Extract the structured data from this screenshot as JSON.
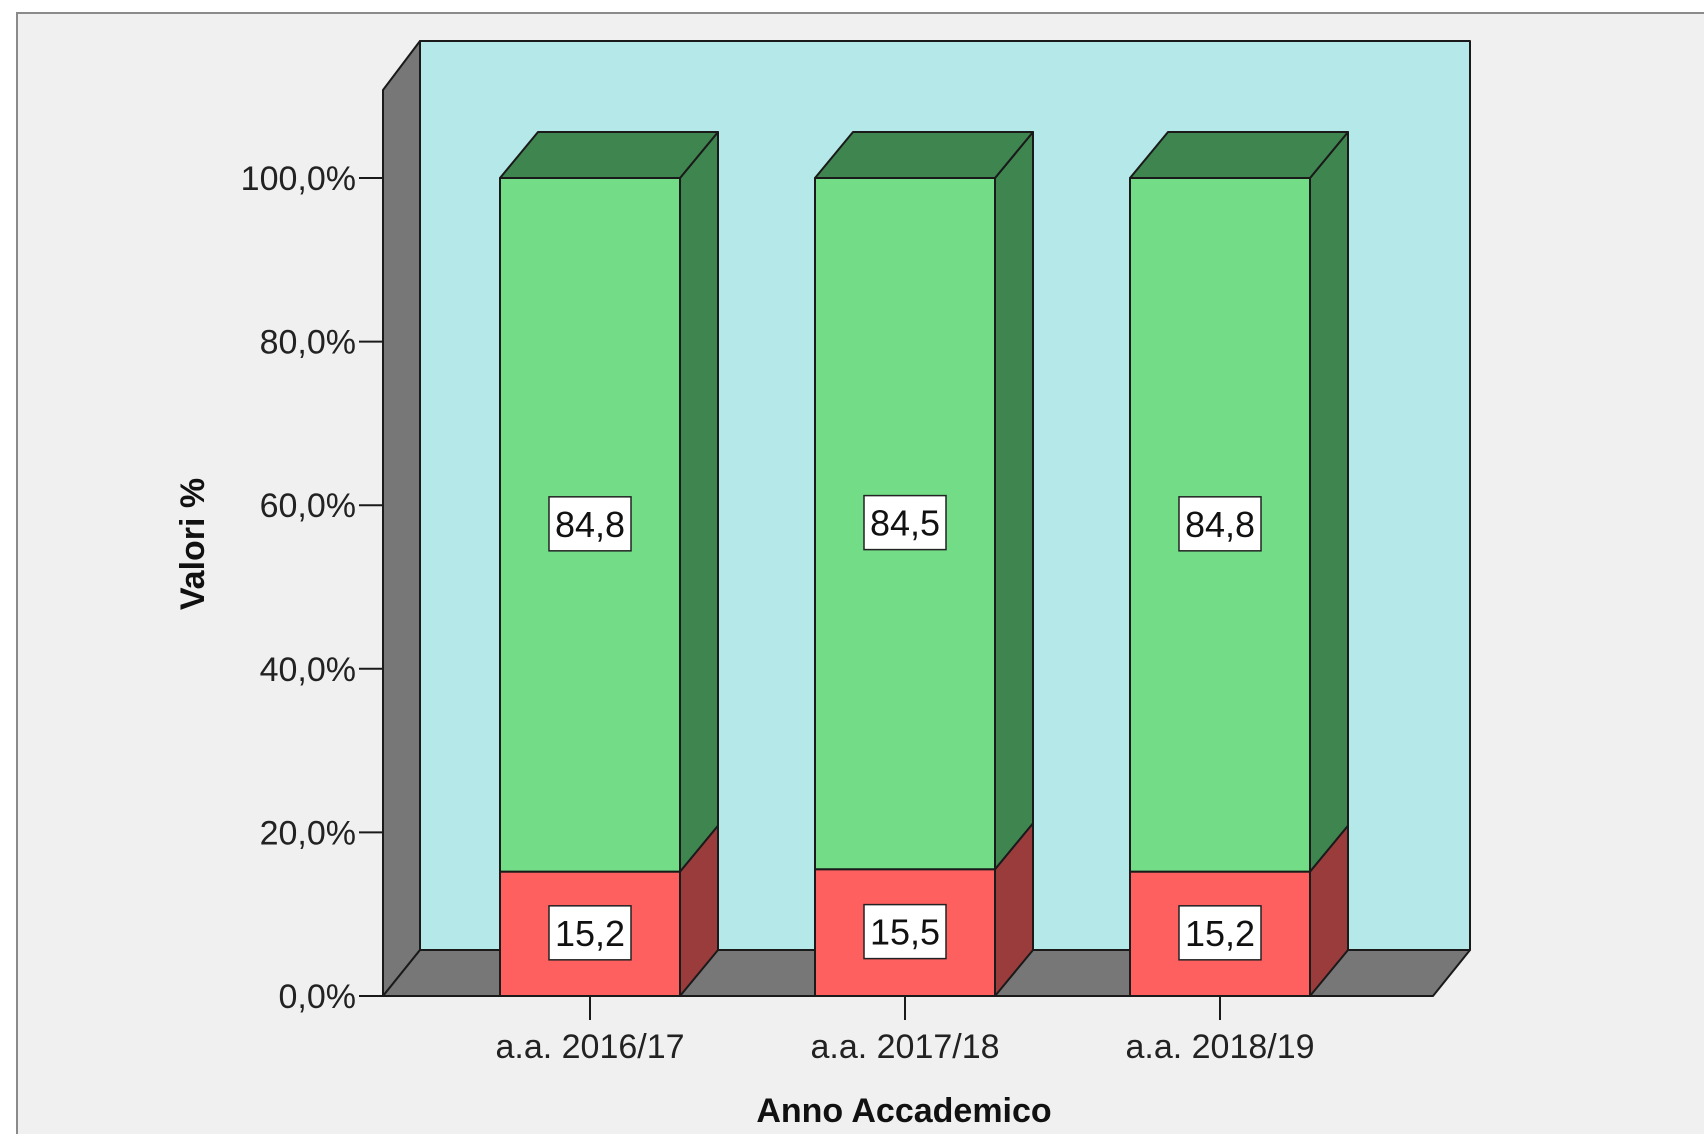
{
  "chart_data": {
    "type": "bar",
    "stacked": true,
    "three_d": true,
    "categories": [
      "a.a. 2016/17",
      "a.a. 2017/18",
      "a.a. 2018/19"
    ],
    "series": [
      {
        "values": [
          15.2,
          15.5,
          15.2
        ],
        "labels": [
          "15,2",
          "15,5",
          "15,2"
        ],
        "color": "#fe6060",
        "side_color": "#9a3c3c"
      },
      {
        "values": [
          84.8,
          84.5,
          84.8
        ],
        "labels": [
          "84,8",
          "84,5",
          "84,8"
        ],
        "color": "#72dd86",
        "side_color": "#3f8550"
      }
    ],
    "xlabel": "Anno Accademico",
    "ylabel": "Valori %",
    "ylim": [
      0,
      100
    ],
    "yticks": [
      0,
      20,
      40,
      60,
      80,
      100
    ],
    "ytick_labels": [
      "0,0%",
      "20,0%",
      "40,0%",
      "60,0%",
      "80,0%",
      "100,0%"
    ],
    "legend": "none",
    "colors": {
      "plot_wall": "#b5e8e8",
      "floor_side": "#777777",
      "frame_bg": "#f0f0f0"
    }
  }
}
